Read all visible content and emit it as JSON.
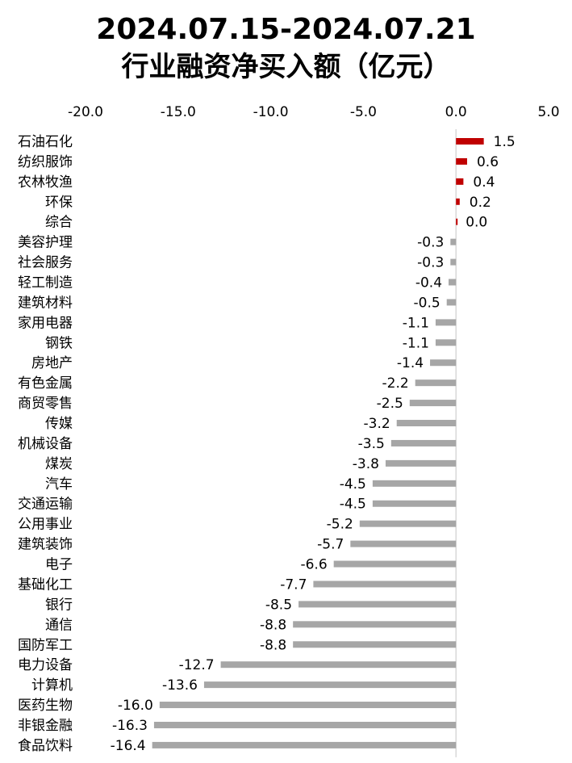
{
  "title": {
    "line1": "2024.07.15-2024.07.21",
    "line2": "行业融资净买入额（亿元）"
  },
  "chart_data": {
    "type": "bar",
    "orientation": "horizontal",
    "categories": [
      "石油石化",
      "纺织服饰",
      "农林牧渔",
      "环保",
      "综合",
      "美容护理",
      "社会服务",
      "轻工制造",
      "建筑材料",
      "家用电器",
      "钢铁",
      "房地产",
      "有色金属",
      "商贸零售",
      "传媒",
      "机械设备",
      "煤炭",
      "汽车",
      "交通运输",
      "公用事业",
      "建筑装饰",
      "电子",
      "基础化工",
      "银行",
      "通信",
      "国防军工",
      "电力设备",
      "计算机",
      "医药生物",
      "非银金融",
      "食品饮料"
    ],
    "values": [
      1.5,
      0.6,
      0.4,
      0.2,
      0.0,
      -0.3,
      -0.3,
      -0.4,
      -0.5,
      -1.1,
      -1.1,
      -1.4,
      -2.2,
      -2.5,
      -3.2,
      -3.5,
      -3.8,
      -4.5,
      -4.5,
      -5.2,
      -5.7,
      -6.6,
      -7.7,
      -8.5,
      -8.8,
      -8.8,
      -12.7,
      -13.6,
      -16.0,
      -16.3,
      -16.4
    ],
    "value_labels": [
      "1.5",
      "0.6",
      "0.4",
      "0.2",
      "0.0",
      "-0.3",
      "-0.3",
      "-0.4",
      "-0.5",
      "-1.1",
      "-1.1",
      "-1.4",
      "-2.2",
      "-2.5",
      "-3.2",
      "-3.5",
      "-3.8",
      "-4.5",
      "-4.5",
      "-5.2",
      "-5.7",
      "-6.6",
      "-7.7",
      "-8.5",
      "-8.8",
      "-8.8",
      "-12.7",
      "-13.6",
      "-16.0",
      "-16.3",
      "-16.4"
    ],
    "xlim": [
      -20,
      5
    ],
    "xticks": [
      -20,
      -15,
      -10,
      -5,
      0,
      5
    ],
    "xtick_labels": [
      "-20.0",
      "-15.0",
      "-10.0",
      "-5.0",
      "0.0",
      "5.0"
    ],
    "axis_position": "top",
    "grid": false,
    "colors": {
      "positive": "#c00000",
      "negative": "#a6a6a6",
      "axis": "#d9d9d9"
    }
  }
}
